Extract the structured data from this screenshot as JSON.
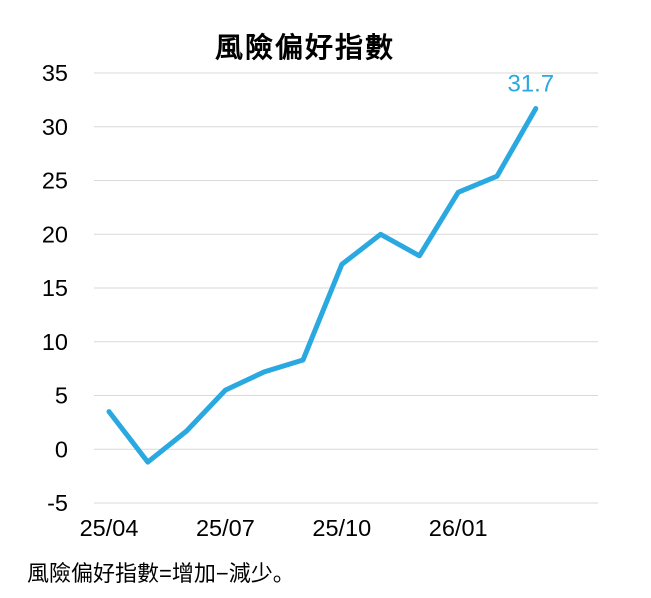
{
  "page": {
    "background": "#FFFFFF"
  },
  "chart_data": {
    "type": "line",
    "title": "風險偏好指數",
    "footnote": "風險偏好指數=增加−減少。",
    "categories": [
      "25/04",
      "25/05",
      "25/06",
      "25/07",
      "25/08",
      "25/09",
      "25/10",
      "25/11",
      "25/12",
      "26/01",
      "26/02",
      "26/03"
    ],
    "series": [
      {
        "name": "風險偏好指數",
        "values": [
          3.5,
          -1.2,
          1.7,
          5.5,
          7.2,
          8.3,
          17.2,
          20.0,
          18.0,
          23.9,
          25.4,
          31.7
        ]
      }
    ],
    "x_ticks": [
      {
        "index": 0,
        "label": "25/04"
      },
      {
        "index": 3,
        "label": "25/07"
      },
      {
        "index": 6,
        "label": "25/10"
      },
      {
        "index": 9,
        "label": "26/01"
      }
    ],
    "y_ticks": [
      -5,
      0,
      5,
      10,
      15,
      20,
      25,
      30,
      35
    ],
    "ylim": [
      -5,
      35
    ],
    "grid": "horizontal",
    "legend": "none",
    "last_point_label": "31.7",
    "colors": {
      "line": "#2AA8E0",
      "gridline": "#D9D9D9",
      "text": "#000000",
      "annotation": "#2AA8E0"
    }
  }
}
